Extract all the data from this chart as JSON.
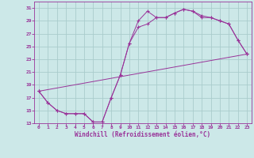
{
  "xlabel": "Windchill (Refroidissement éolien,°C)",
  "bg_color": "#cce8e8",
  "grid_color": "#aacccc",
  "line_color": "#993399",
  "xlim": [
    -0.5,
    23.5
  ],
  "ylim": [
    13,
    32
  ],
  "xticks": [
    0,
    1,
    2,
    3,
    4,
    5,
    6,
    7,
    8,
    9,
    10,
    11,
    12,
    13,
    14,
    15,
    16,
    17,
    18,
    19,
    20,
    21,
    22,
    23
  ],
  "yticks": [
    13,
    15,
    17,
    19,
    21,
    23,
    25,
    27,
    29,
    31
  ],
  "line1_x": [
    0,
    1,
    2,
    3,
    4,
    5,
    6,
    7,
    8,
    9,
    10,
    11,
    12,
    13,
    14,
    15,
    16,
    17,
    18,
    19,
    20,
    21,
    22,
    23
  ],
  "line1_y": [
    18.0,
    16.2,
    15.0,
    14.5,
    14.5,
    14.5,
    13.2,
    13.2,
    17.0,
    20.5,
    25.5,
    29.0,
    30.5,
    29.5,
    29.5,
    30.2,
    30.8,
    30.5,
    29.5,
    29.5,
    29.0,
    28.5,
    26.0,
    23.8
  ],
  "line2_x": [
    0,
    1,
    2,
    3,
    4,
    5,
    6,
    7,
    8,
    9,
    10,
    11,
    12,
    13,
    14,
    15,
    16,
    17,
    18,
    19,
    20,
    21,
    22,
    23
  ],
  "line2_y": [
    18.0,
    16.2,
    15.0,
    14.5,
    14.5,
    14.5,
    13.2,
    13.2,
    17.0,
    20.5,
    25.5,
    28.0,
    28.5,
    29.5,
    29.5,
    30.2,
    30.8,
    30.5,
    29.8,
    29.5,
    29.0,
    28.5,
    26.0,
    23.8
  ],
  "line3_x": [
    0,
    23
  ],
  "line3_y": [
    18.0,
    23.8
  ]
}
